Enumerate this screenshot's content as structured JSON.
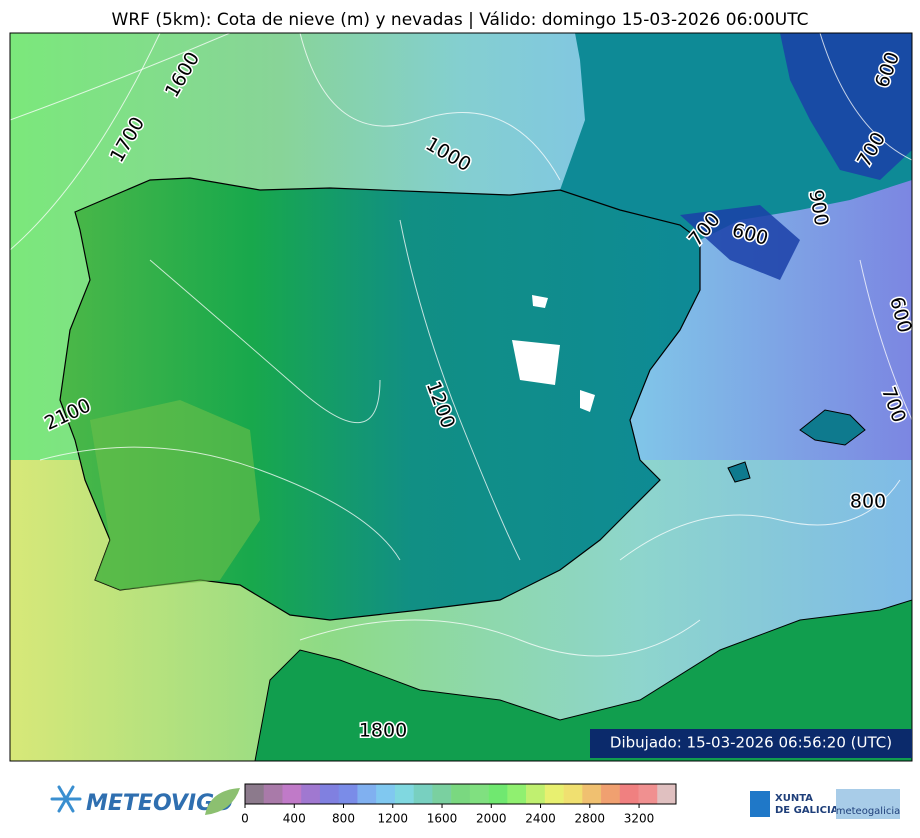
{
  "title": "WRF (5km): Cota de nieve (m) y nevadas | Válido: domingo 15-03-2026 06:00UTC",
  "map": {
    "contour_labels": [
      1600,
      1700,
      1000,
      2100,
      1200,
      700,
      600,
      900,
      700,
      600,
      600,
      700,
      800,
      1800
    ]
  },
  "timestamp": "Dibujado: 15-03-2026 06:56:20 (UTC)",
  "colorbar": {
    "range": [
      0,
      3500
    ],
    "ticks": [
      0,
      400,
      800,
      1200,
      1600,
      2000,
      2400,
      2800,
      3200
    ],
    "colors": [
      "#8c7a8c",
      "#a97aa9",
      "#c07ac8",
      "#a078d0",
      "#8080e0",
      "#7a8ce8",
      "#80b0f0",
      "#80c8f0",
      "#80d8e0",
      "#78d0c0",
      "#7ad0a0",
      "#7ad880",
      "#80e080",
      "#70e870",
      "#90f070",
      "#c0f070",
      "#e8f070",
      "#f0e070",
      "#f0c070",
      "#f0a070",
      "#f08080",
      "#f09090",
      "#e0c0c0"
    ]
  },
  "logos": {
    "meteovigo": "METEOVIGO",
    "xunta": [
      "XUNTA",
      "DE GALICIA"
    ],
    "meteogalicia": "meteogalicia"
  }
}
